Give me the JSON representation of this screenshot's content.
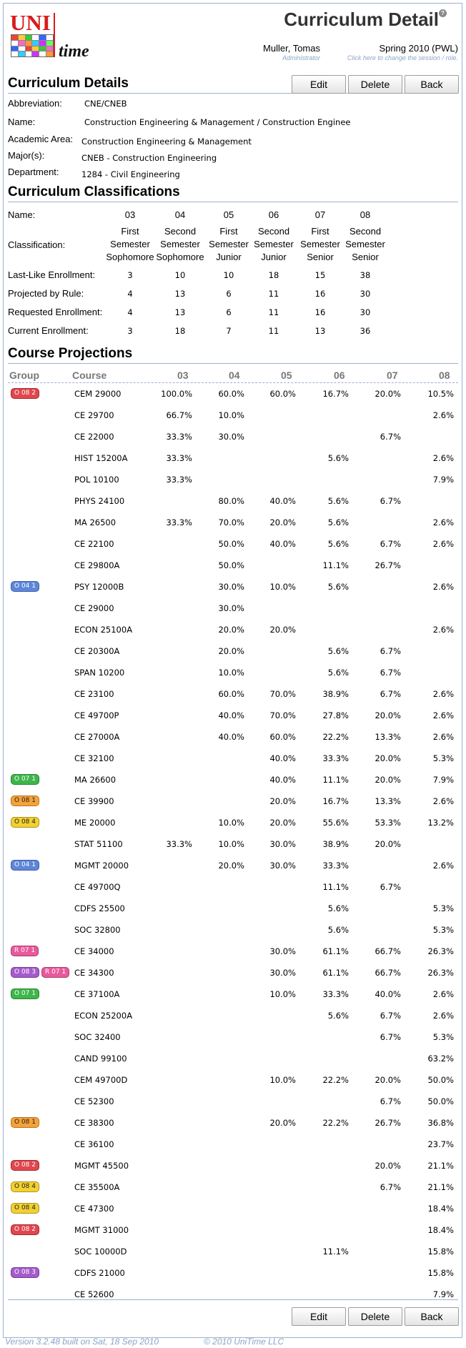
{
  "header": {
    "logo_uni": "UNI",
    "logo_time": "time",
    "title": "Curriculum Detail",
    "help_glyph": "?",
    "user_name": "Muller, Tomas",
    "user_role": "Administrator",
    "session": "Spring 2010 (PWL)",
    "session_hint": "Click here to change the session / role."
  },
  "details": {
    "heading": "Curriculum Details",
    "buttons": {
      "edit": "Edit",
      "delete": "Delete",
      "back": "Back"
    },
    "fields": [
      {
        "label": "Abbreviation:",
        "value": "CNE/CNEB"
      },
      {
        "label": "Name:",
        "value": "Construction Engineering & Management / Construction Enginee"
      },
      {
        "label": "Academic Area:",
        "value": "Construction Engineering & Management"
      },
      {
        "label": "Major(s):",
        "value": "CNEB - Construction Engineering"
      },
      {
        "label": "Department:",
        "value": "1284 - Civil Engineering"
      }
    ]
  },
  "classifications": {
    "heading": "Curriculum Classifications",
    "name_label": "Name:",
    "classification_label": "Classification:",
    "columns": [
      {
        "name": "03",
        "l1": "First",
        "l2": "Semester",
        "l3": "Sophomore"
      },
      {
        "name": "04",
        "l1": "Second",
        "l2": "Semester",
        "l3": "Sophomore"
      },
      {
        "name": "05",
        "l1": "First",
        "l2": "Semester",
        "l3": "Junior"
      },
      {
        "name": "06",
        "l1": "Second",
        "l2": "Semester",
        "l3": "Junior"
      },
      {
        "name": "07",
        "l1": "First",
        "l2": "Semester",
        "l3": "Senior"
      },
      {
        "name": "08",
        "l1": "Second",
        "l2": "Semester",
        "l3": "Senior"
      }
    ],
    "rows": [
      {
        "label": "Last-Like Enrollment:",
        "values": [
          "3",
          "10",
          "10",
          "18",
          "15",
          "38"
        ]
      },
      {
        "label": "Projected by Rule:",
        "values": [
          "4",
          "13",
          "6",
          "11",
          "16",
          "30"
        ]
      },
      {
        "label": "Requested Enrollment:",
        "values": [
          "4",
          "13",
          "6",
          "11",
          "16",
          "30"
        ]
      },
      {
        "label": "Current Enrollment:",
        "values": [
          "3",
          "18",
          "7",
          "11",
          "13",
          "36"
        ]
      }
    ]
  },
  "projections": {
    "heading": "Course Projections",
    "col_group": "Group",
    "col_course": "Course",
    "columns": [
      "03",
      "04",
      "05",
      "06",
      "07",
      "08"
    ],
    "rows": [
      {
        "groups": [
          {
            "text": "O 08 2",
            "color": "red"
          }
        ],
        "course": "CEM 29000",
        "values": [
          "100.0%",
          "60.0%",
          "60.0%",
          "16.7%",
          "20.0%",
          "10.5%"
        ]
      },
      {
        "groups": [],
        "course": "CE 29700",
        "values": [
          "66.7%",
          "10.0%",
          "",
          "",
          "",
          "2.6%"
        ]
      },
      {
        "groups": [],
        "course": "CE 22000",
        "values": [
          "33.3%",
          "30.0%",
          "",
          "",
          "6.7%",
          ""
        ]
      },
      {
        "groups": [],
        "course": "HIST 15200A",
        "values": [
          "33.3%",
          "",
          "",
          "5.6%",
          "",
          "2.6%"
        ]
      },
      {
        "groups": [],
        "course": "POL 10100",
        "values": [
          "33.3%",
          "",
          "",
          "",
          "",
          "7.9%"
        ]
      },
      {
        "groups": [],
        "course": "PHYS 24100",
        "values": [
          "",
          "80.0%",
          "40.0%",
          "5.6%",
          "6.7%",
          ""
        ]
      },
      {
        "groups": [],
        "course": "MA 26500",
        "values": [
          "33.3%",
          "70.0%",
          "20.0%",
          "5.6%",
          "",
          "2.6%"
        ]
      },
      {
        "groups": [],
        "course": "CE 22100",
        "values": [
          "",
          "50.0%",
          "40.0%",
          "5.6%",
          "6.7%",
          "2.6%"
        ]
      },
      {
        "groups": [],
        "course": "CE 29800A",
        "values": [
          "",
          "50.0%",
          "",
          "11.1%",
          "26.7%",
          ""
        ]
      },
      {
        "groups": [
          {
            "text": "O 04 1",
            "color": "blue"
          }
        ],
        "course": "PSY 12000B",
        "values": [
          "",
          "30.0%",
          "10.0%",
          "5.6%",
          "",
          "2.6%"
        ]
      },
      {
        "groups": [],
        "course": "CE 29000",
        "values": [
          "",
          "30.0%",
          "",
          "",
          "",
          ""
        ]
      },
      {
        "groups": [],
        "course": "ECON 25100A",
        "values": [
          "",
          "20.0%",
          "20.0%",
          "",
          "",
          "2.6%"
        ]
      },
      {
        "groups": [],
        "course": "CE 20300A",
        "values": [
          "",
          "20.0%",
          "",
          "5.6%",
          "6.7%",
          ""
        ]
      },
      {
        "groups": [],
        "course": "SPAN 10200",
        "values": [
          "",
          "10.0%",
          "",
          "5.6%",
          "6.7%",
          ""
        ]
      },
      {
        "groups": [],
        "course": "CE 23100",
        "values": [
          "",
          "60.0%",
          "70.0%",
          "38.9%",
          "6.7%",
          "2.6%"
        ]
      },
      {
        "groups": [],
        "course": "CE 49700P",
        "values": [
          "",
          "40.0%",
          "70.0%",
          "27.8%",
          "20.0%",
          "2.6%"
        ]
      },
      {
        "groups": [],
        "course": "CE 27000A",
        "values": [
          "",
          "40.0%",
          "60.0%",
          "22.2%",
          "13.3%",
          "2.6%"
        ]
      },
      {
        "groups": [],
        "course": "CE 32100",
        "values": [
          "",
          "",
          "40.0%",
          "33.3%",
          "20.0%",
          "5.3%"
        ]
      },
      {
        "groups": [
          {
            "text": "O 07 1",
            "color": "green"
          }
        ],
        "course": "MA 26600",
        "values": [
          "",
          "",
          "40.0%",
          "11.1%",
          "20.0%",
          "7.9%"
        ]
      },
      {
        "groups": [
          {
            "text": "O 08 1",
            "color": "orange"
          }
        ],
        "course": "CE 39900",
        "values": [
          "",
          "",
          "20.0%",
          "16.7%",
          "13.3%",
          "2.6%"
        ]
      },
      {
        "groups": [
          {
            "text": "O 08 4",
            "color": "yellow"
          }
        ],
        "course": "ME 20000",
        "values": [
          "",
          "10.0%",
          "20.0%",
          "55.6%",
          "53.3%",
          "13.2%"
        ]
      },
      {
        "groups": [],
        "course": "STAT 51100",
        "values": [
          "33.3%",
          "10.0%",
          "30.0%",
          "38.9%",
          "20.0%",
          ""
        ]
      },
      {
        "groups": [
          {
            "text": "O 04 1",
            "color": "blue"
          }
        ],
        "course": "MGMT 20000",
        "values": [
          "",
          "20.0%",
          "30.0%",
          "33.3%",
          "",
          "2.6%"
        ]
      },
      {
        "groups": [],
        "course": "CE 49700Q",
        "values": [
          "",
          "",
          "",
          "11.1%",
          "6.7%",
          ""
        ]
      },
      {
        "groups": [],
        "course": "CDFS 25500",
        "values": [
          "",
          "",
          "",
          "5.6%",
          "",
          "5.3%"
        ]
      },
      {
        "groups": [],
        "course": "SOC 32800",
        "values": [
          "",
          "",
          "",
          "5.6%",
          "",
          "5.3%"
        ]
      },
      {
        "groups": [
          {
            "text": "R 07 1",
            "color": "pink"
          }
        ],
        "course": "CE 34000",
        "values": [
          "",
          "",
          "30.0%",
          "61.1%",
          "66.7%",
          "26.3%"
        ]
      },
      {
        "groups": [
          {
            "text": "O 08 3",
            "color": "purple"
          },
          {
            "text": "R 07 1",
            "color": "pink"
          }
        ],
        "course": "CE 34300",
        "values": [
          "",
          "",
          "30.0%",
          "61.1%",
          "66.7%",
          "26.3%"
        ]
      },
      {
        "groups": [
          {
            "text": "O 07 1",
            "color": "green"
          }
        ],
        "course": "CE 37100A",
        "values": [
          "",
          "",
          "10.0%",
          "33.3%",
          "40.0%",
          "2.6%"
        ]
      },
      {
        "groups": [],
        "course": "ECON 25200A",
        "values": [
          "",
          "",
          "",
          "5.6%",
          "6.7%",
          "2.6%"
        ]
      },
      {
        "groups": [],
        "course": "SOC 32400",
        "values": [
          "",
          "",
          "",
          "",
          "6.7%",
          "5.3%"
        ]
      },
      {
        "groups": [],
        "course": "CAND 99100",
        "values": [
          "",
          "",
          "",
          "",
          "",
          "63.2%"
        ]
      },
      {
        "groups": [],
        "course": "CEM 49700D",
        "values": [
          "",
          "",
          "10.0%",
          "22.2%",
          "20.0%",
          "50.0%"
        ]
      },
      {
        "groups": [],
        "course": "CE 52300",
        "values": [
          "",
          "",
          "",
          "",
          "6.7%",
          "50.0%"
        ]
      },
      {
        "groups": [
          {
            "text": "O 08 1",
            "color": "orange"
          }
        ],
        "course": "CE 38300",
        "values": [
          "",
          "",
          "20.0%",
          "22.2%",
          "26.7%",
          "36.8%"
        ]
      },
      {
        "groups": [],
        "course": "CE 36100",
        "values": [
          "",
          "",
          "",
          "",
          "",
          "23.7%"
        ]
      },
      {
        "groups": [
          {
            "text": "O 08 2",
            "color": "red"
          }
        ],
        "course": "MGMT 45500",
        "values": [
          "",
          "",
          "",
          "",
          "20.0%",
          "21.1%"
        ]
      },
      {
        "groups": [
          {
            "text": "O 08 4",
            "color": "yellow"
          }
        ],
        "course": "CE 35500A",
        "values": [
          "",
          "",
          "",
          "",
          "6.7%",
          "21.1%"
        ]
      },
      {
        "groups": [
          {
            "text": "O 08 4",
            "color": "yellow"
          }
        ],
        "course": "CE 47300",
        "values": [
          "",
          "",
          "",
          "",
          "",
          "18.4%"
        ]
      },
      {
        "groups": [
          {
            "text": "O 08 2",
            "color": "red"
          }
        ],
        "course": "MGMT 31000",
        "values": [
          "",
          "",
          "",
          "",
          "",
          "18.4%"
        ]
      },
      {
        "groups": [],
        "course": "SOC 10000D",
        "values": [
          "",
          "",
          "",
          "11.1%",
          "",
          "15.8%"
        ]
      },
      {
        "groups": [
          {
            "text": "O 08 3",
            "color": "purple"
          }
        ],
        "course": "CDFS 21000",
        "values": [
          "",
          "",
          "",
          "",
          "",
          "15.8%"
        ]
      },
      {
        "groups": [],
        "course": "CE 52600",
        "values": [
          "",
          "",
          "",
          "",
          "",
          "7.9%"
        ]
      }
    ]
  },
  "footer": {
    "version": "Version 3.2.48 built on Sat, 18 Sep 2010",
    "copyright": "© 2010 UniTime LLC"
  },
  "colors": {
    "section_rule": "#9cb0ce",
    "hint_text": "#8ca4c8",
    "red": "#e0474e",
    "blue": "#5f86d8",
    "green": "#3fb54a",
    "orange": "#f4a23a",
    "yellow": "#f2d130",
    "pink": "#e85a9c",
    "purple": "#a55bcb"
  }
}
